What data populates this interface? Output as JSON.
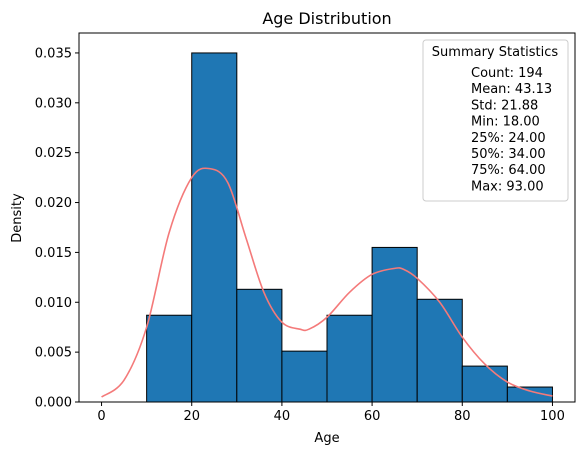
{
  "chart_data": {
    "type": "bar",
    "title": "Age Distribution",
    "xlabel": "Age",
    "ylabel": "Density",
    "xlim": [
      -5,
      105
    ],
    "ylim": [
      0,
      0.037
    ],
    "xticks": [
      0,
      20,
      40,
      60,
      80,
      100
    ],
    "yticks": [
      0.0,
      0.005,
      0.01,
      0.015,
      0.02,
      0.025,
      0.03,
      0.035
    ],
    "ytick_labels": [
      "0.000",
      "0.005",
      "0.010",
      "0.015",
      "0.020",
      "0.025",
      "0.030",
      "0.035"
    ],
    "bins": [
      {
        "x0": 10,
        "x1": 20,
        "density": 0.0087
      },
      {
        "x0": 20,
        "x1": 30,
        "density": 0.035
      },
      {
        "x0": 30,
        "x1": 40,
        "density": 0.0113
      },
      {
        "x0": 40,
        "x1": 50,
        "density": 0.0051
      },
      {
        "x0": 50,
        "x1": 60,
        "density": 0.0087
      },
      {
        "x0": 60,
        "x1": 70,
        "density": 0.0155
      },
      {
        "x0": 70,
        "x1": 80,
        "density": 0.0103
      },
      {
        "x0": 80,
        "x1": 90,
        "density": 0.0036
      },
      {
        "x0": 90,
        "x1": 100,
        "density": 0.0015
      }
    ],
    "bar_color": "#1f77b4",
    "bar_edge_color": "#000000",
    "kde": {
      "color": "#f47a7a",
      "x": [
        0,
        5,
        10,
        15,
        20,
        24,
        28,
        32,
        36,
        40,
        44,
        46,
        50,
        55,
        60,
        65,
        67,
        70,
        75,
        80,
        85,
        90,
        95,
        100
      ],
      "y": [
        0.0005,
        0.0022,
        0.0075,
        0.017,
        0.0225,
        0.0234,
        0.022,
        0.0165,
        0.011,
        0.008,
        0.0073,
        0.0073,
        0.0085,
        0.011,
        0.0128,
        0.0134,
        0.0133,
        0.0124,
        0.01,
        0.0065,
        0.0038,
        0.002,
        0.0011,
        0.0006
      ]
    },
    "legend": {
      "title": "Summary Statistics",
      "placement": "top-right",
      "lines": [
        "Count: 194",
        "Mean: 43.13",
        "Std: 21.88",
        "Min: 18.00",
        "25%: 24.00",
        "50%: 34.00",
        "75%: 64.00",
        "Max: 93.00"
      ]
    }
  }
}
